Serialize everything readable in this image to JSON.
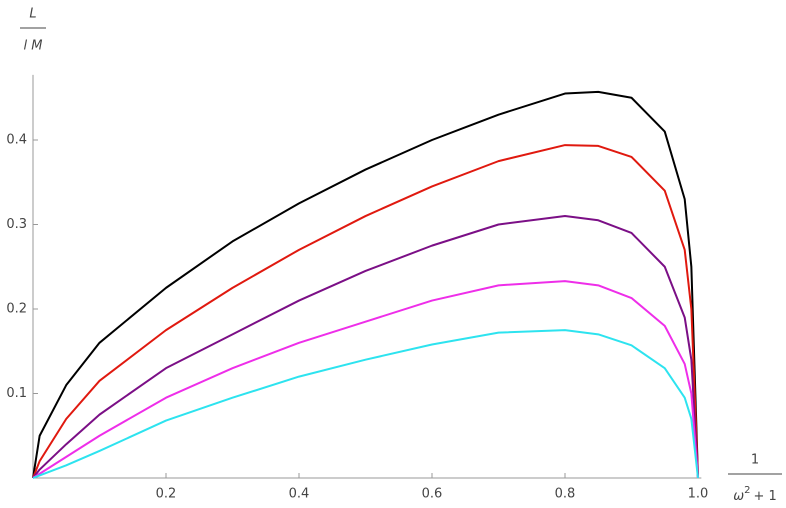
{
  "chart_data": {
    "type": "line",
    "xlabel": {
      "numerator": "1",
      "denominator": [
        "ω",
        "2",
        "+ 1"
      ]
    },
    "ylabel": {
      "numerator": "L",
      "denominator": "l M"
    },
    "x": [
      0,
      0.01,
      0.05,
      0.1,
      0.2,
      0.3,
      0.4,
      0.5,
      0.6,
      0.7,
      0.8,
      0.85,
      0.9,
      0.95,
      0.98,
      0.99,
      1.0
    ],
    "series": [
      {
        "color": "#000000",
        "values": [
          0,
          0.05,
          0.11,
          0.16,
          0.225,
          0.28,
          0.325,
          0.365,
          0.4,
          0.43,
          0.455,
          0.457,
          0.45,
          0.41,
          0.33,
          0.25,
          0
        ]
      },
      {
        "color": "#e0190f",
        "values": [
          0,
          0.02,
          0.07,
          0.115,
          0.175,
          0.225,
          0.27,
          0.31,
          0.345,
          0.375,
          0.394,
          0.393,
          0.38,
          0.34,
          0.27,
          0.2,
          0
        ]
      },
      {
        "color": "#7b0f86",
        "values": [
          0,
          0.01,
          0.04,
          0.075,
          0.13,
          0.17,
          0.21,
          0.245,
          0.275,
          0.3,
          0.31,
          0.305,
          0.29,
          0.25,
          0.19,
          0.14,
          0
        ]
      },
      {
        "color": "#ee2ee9",
        "values": [
          0,
          0.005,
          0.025,
          0.05,
          0.095,
          0.13,
          0.16,
          0.185,
          0.21,
          0.228,
          0.233,
          0.228,
          0.213,
          0.18,
          0.135,
          0.1,
          0
        ]
      },
      {
        "color": "#2de3ef",
        "values": [
          0,
          0.003,
          0.015,
          0.032,
          0.068,
          0.095,
          0.12,
          0.14,
          0.158,
          0.172,
          0.175,
          0.17,
          0.157,
          0.13,
          0.095,
          0.07,
          0
        ]
      }
    ],
    "xlim": [
      0,
      1.005
    ],
    "ylim": [
      0,
      0.477
    ],
    "xticks": [
      0.2,
      0.4,
      0.6,
      0.8,
      {
        "value": 1,
        "label": "1.0"
      }
    ],
    "yticks": [
      0.1,
      0.2,
      0.3,
      0.4
    ]
  }
}
